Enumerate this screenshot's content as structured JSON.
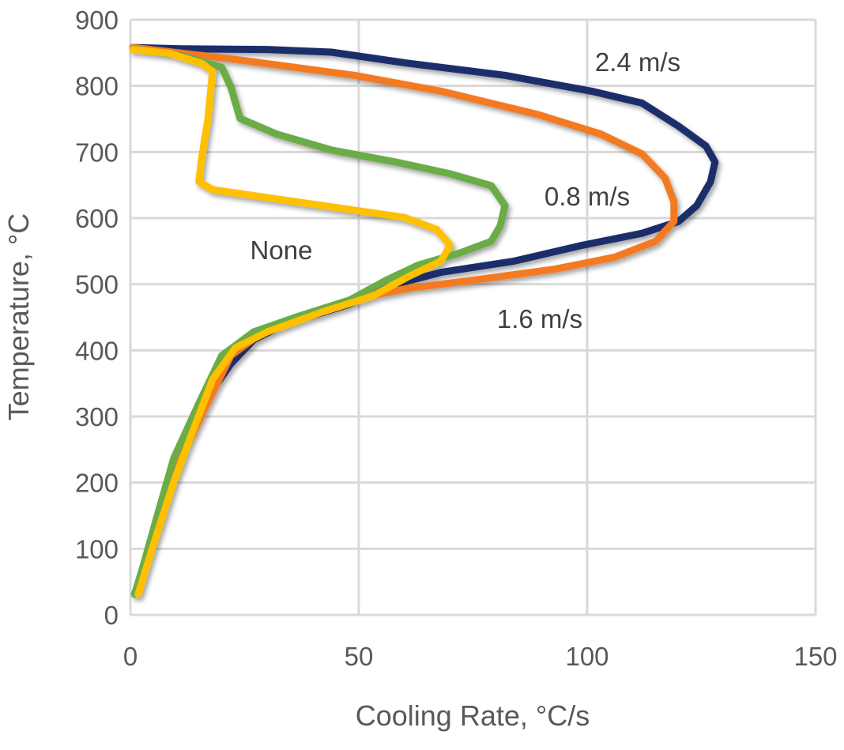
{
  "chart_data": {
    "type": "line",
    "title": "",
    "xlabel": "Cooling Rate, °C/s",
    "ylabel": "Temperature, °C",
    "xlim": [
      0,
      150
    ],
    "ylim": [
      0,
      900
    ],
    "xticks": [
      "0",
      "50",
      "100",
      "150"
    ],
    "yticks": [
      "0",
      "100",
      "200",
      "300",
      "400",
      "500",
      "600",
      "700",
      "800",
      "900"
    ],
    "grid": true,
    "legend": "none",
    "series": [
      {
        "color": "#1f2d6b",
        "points": [
          [
            0.5,
            858
          ],
          [
            11,
            856
          ],
          [
            30,
            855
          ],
          [
            44,
            851
          ],
          [
            61,
            834
          ],
          [
            82,
            816
          ],
          [
            101,
            792
          ],
          [
            112,
            774
          ],
          [
            120,
            739
          ],
          [
            126,
            709
          ],
          [
            128,
            685
          ],
          [
            127,
            655
          ],
          [
            124,
            619
          ],
          [
            120,
            595
          ],
          [
            112,
            577
          ],
          [
            99,
            559
          ],
          [
            84,
            535
          ],
          [
            68,
            518
          ],
          [
            58,
            500
          ],
          [
            48,
            470
          ],
          [
            34,
            440
          ],
          [
            27,
            416
          ],
          [
            22,
            380
          ],
          [
            16,
            320
          ],
          [
            11,
            237
          ],
          [
            7,
            153
          ],
          [
            3.5,
            81
          ],
          [
            1,
            33
          ]
        ]
      },
      {
        "color": "#f47a20",
        "points": [
          [
            0.5,
            858
          ],
          [
            23,
            840
          ],
          [
            49,
            816
          ],
          [
            68,
            792
          ],
          [
            89,
            757
          ],
          [
            103,
            727
          ],
          [
            112,
            697
          ],
          [
            117,
            661
          ],
          [
            119,
            625
          ],
          [
            119,
            595
          ],
          [
            115,
            565
          ],
          [
            106,
            541
          ],
          [
            93,
            523
          ],
          [
            75,
            506
          ],
          [
            61,
            494
          ],
          [
            49,
            478
          ],
          [
            41,
            458
          ],
          [
            29,
            428
          ],
          [
            22,
            392
          ],
          [
            16,
            308
          ],
          [
            9.5,
            213
          ],
          [
            5,
            117
          ],
          [
            1.7,
            39
          ]
        ]
      },
      {
        "color": "#6aac45",
        "points": [
          [
            0.5,
            856
          ],
          [
            11,
            846
          ],
          [
            20,
            828
          ],
          [
            22,
            798
          ],
          [
            24,
            751
          ],
          [
            32,
            727
          ],
          [
            44,
            703
          ],
          [
            58,
            685
          ],
          [
            70,
            667
          ],
          [
            79,
            649
          ],
          [
            82,
            619
          ],
          [
            81,
            589
          ],
          [
            79,
            565
          ],
          [
            72,
            547
          ],
          [
            63,
            529
          ],
          [
            56,
            506
          ],
          [
            48,
            476
          ],
          [
            37,
            452
          ],
          [
            27,
            428
          ],
          [
            20,
            392
          ],
          [
            15,
            320
          ],
          [
            9.5,
            237
          ],
          [
            6,
            153
          ],
          [
            2.6,
            69
          ],
          [
            0.9,
            31
          ]
        ]
      },
      {
        "color": "#ffc000",
        "points": [
          [
            0.5,
            855
          ],
          [
            8.6,
            849
          ],
          [
            15.6,
            834
          ],
          [
            18,
            822
          ],
          [
            17,
            751
          ],
          [
            15.6,
            691
          ],
          [
            15,
            655
          ],
          [
            18,
            643
          ],
          [
            34,
            627
          ],
          [
            48,
            613
          ],
          [
            60,
            601
          ],
          [
            67,
            583
          ],
          [
            70,
            559
          ],
          [
            68,
            535
          ],
          [
            61,
            512
          ],
          [
            53,
            482
          ],
          [
            42,
            458
          ],
          [
            30,
            428
          ],
          [
            23,
            404
          ],
          [
            18,
            356
          ],
          [
            14,
            284
          ],
          [
            9.5,
            201
          ],
          [
            5,
            105
          ],
          [
            1.7,
            31
          ]
        ]
      }
    ],
    "annotations": [
      "2.4 m/s",
      "0.8 m/s",
      "None",
      "1.6 m/s"
    ]
  }
}
